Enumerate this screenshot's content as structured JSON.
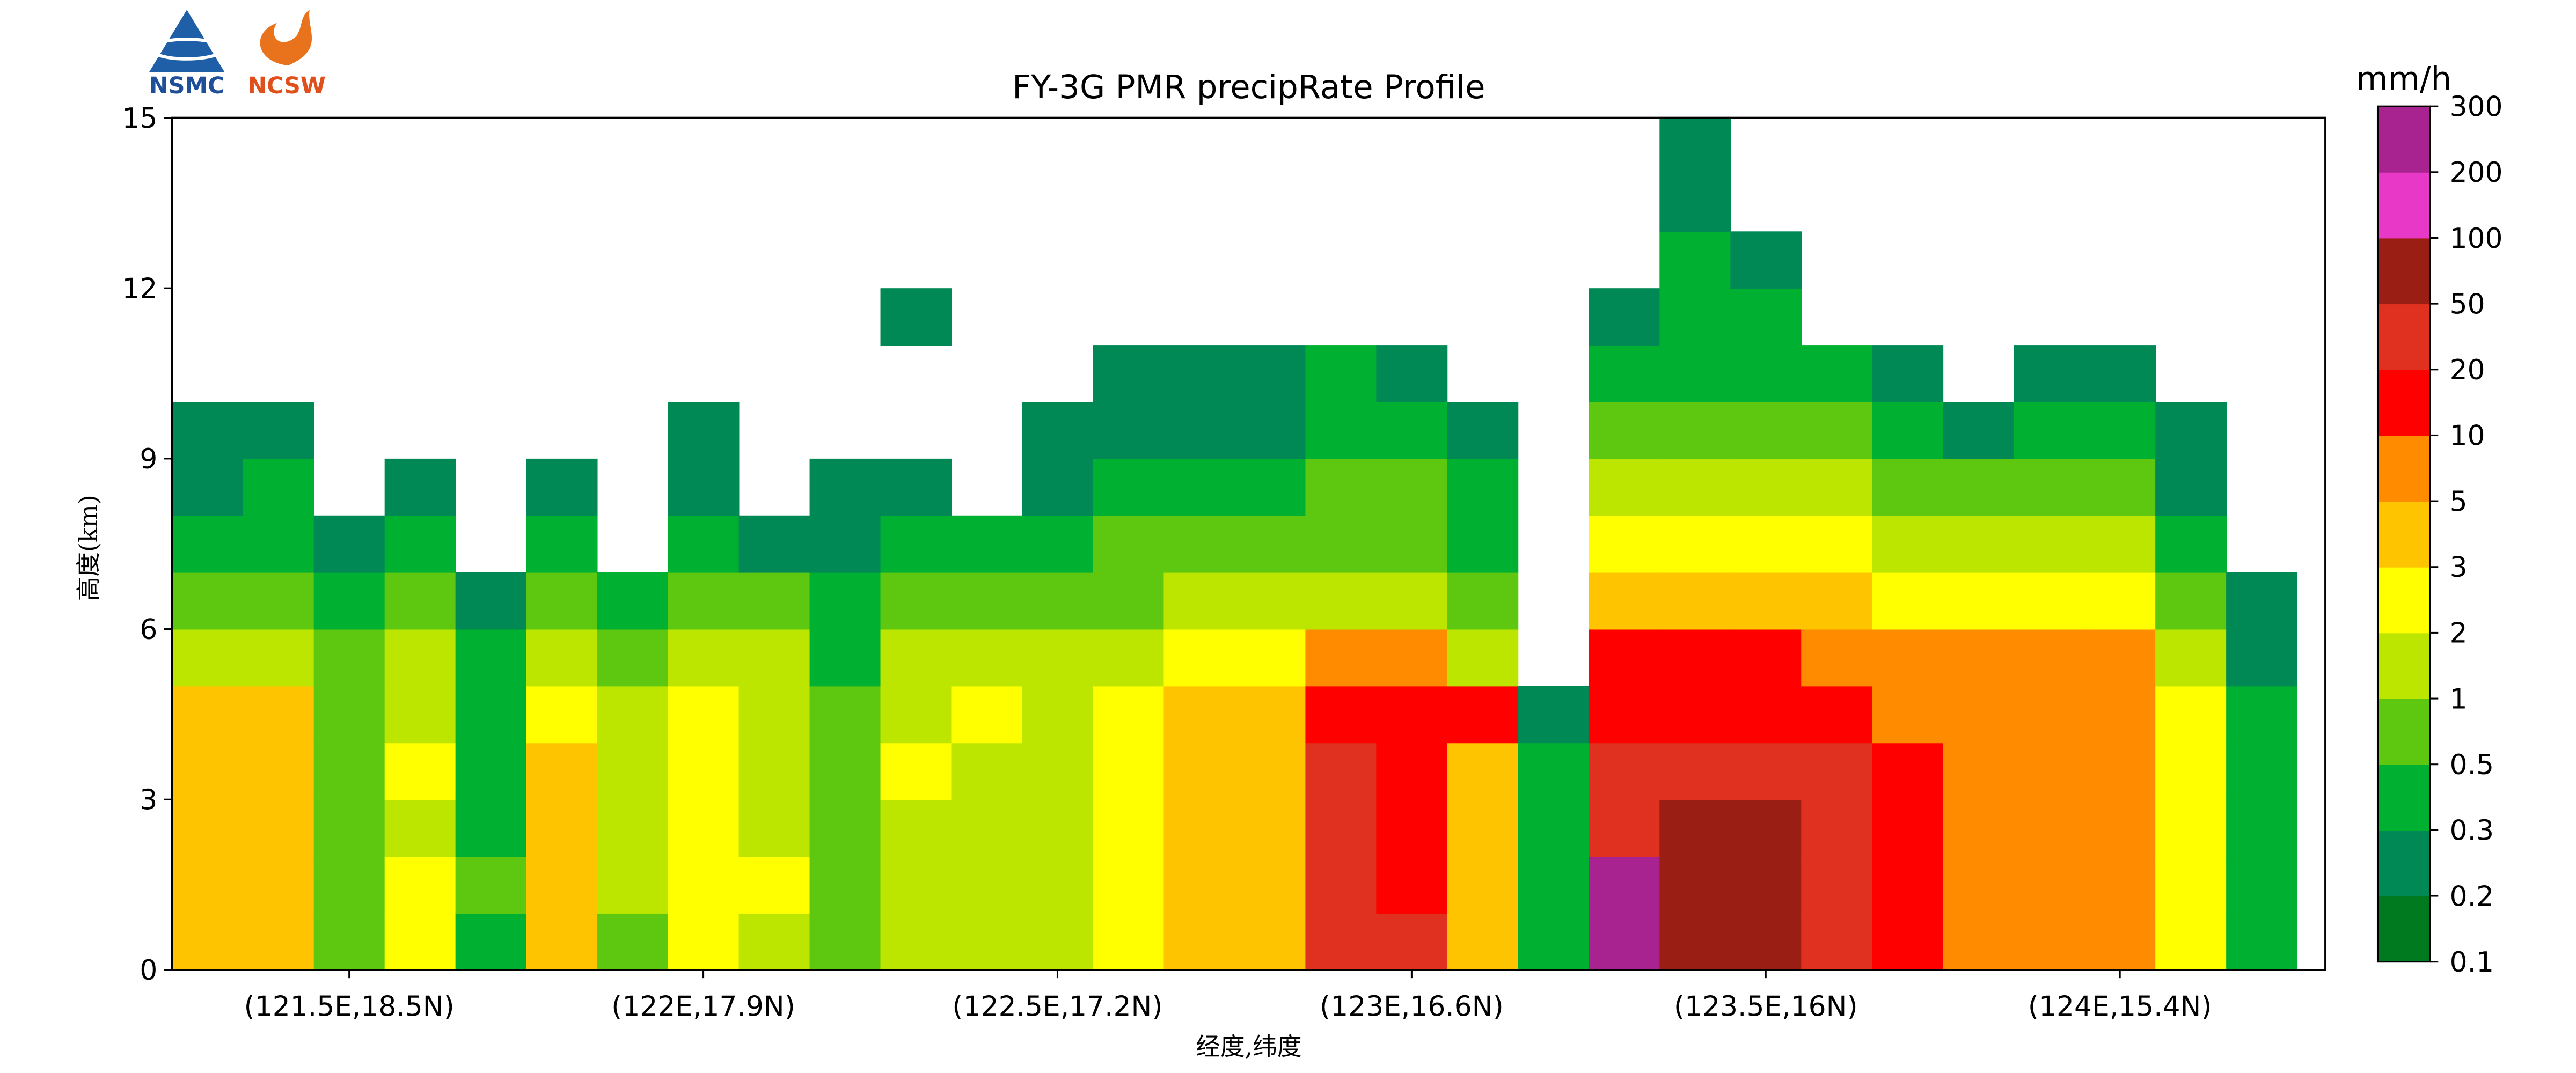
{
  "chart_data": {
    "type": "heatmap",
    "title": "FY-3G PMR precipRate Profile",
    "logos": [
      "NSMC",
      "NCSW"
    ],
    "x_label": "经度,纬度",
    "y_label": "高度(km)",
    "xlim": [
      121.25,
      124.29
    ],
    "xticks": [
      {
        "value": 121.5,
        "label": "(121.5E,18.5N)"
      },
      {
        "value": 122,
        "label": "(122E,17.9N)"
      },
      {
        "value": 122.5,
        "label": "(122.5E,17.2N)"
      },
      {
        "value": 123,
        "label": "(123E,16.6N)"
      },
      {
        "value": 123.5,
        "label": "(123.5E,16N)"
      },
      {
        "value": 124,
        "label": "(124E,15.4N)"
      }
    ],
    "ylim": [
      0,
      15
    ],
    "yticks": [
      0,
      3,
      6,
      9,
      12,
      15
    ],
    "xbins": [
      121.25,
      121.35,
      121.45,
      121.55,
      121.65,
      121.75,
      121.85,
      121.95,
      122.05,
      122.15,
      122.25,
      122.35,
      122.45,
      122.55,
      122.65,
      122.75,
      122.85,
      122.95,
      123.05,
      123.15,
      123.25,
      123.35,
      123.45,
      123.55,
      123.65,
      123.75,
      123.85,
      123.95,
      124.05,
      124.15,
      124.25
    ],
    "ybins": [
      0,
      1,
      2,
      3,
      4,
      5,
      6,
      7,
      8,
      9,
      10,
      11,
      12,
      13,
      14,
      15
    ],
    "values": [
      [
        4,
        4,
        4,
        4,
        4,
        1.5,
        0.7,
        0.4,
        0.25,
        0.25,
        null,
        null,
        null,
        null,
        null
      ],
      [
        4,
        4,
        4,
        4,
        4,
        1.5,
        0.7,
        0.4,
        0.4,
        0.25,
        null,
        null,
        null,
        null,
        null
      ],
      [
        0.7,
        0.7,
        0.7,
        0.7,
        0.7,
        0.7,
        0.4,
        0.25,
        null,
        null,
        null,
        null,
        null,
        null,
        null
      ],
      [
        2.5,
        2.5,
        1.5,
        2.5,
        1.5,
        1.5,
        0.7,
        0.4,
        0.25,
        null,
        null,
        null,
        null,
        null,
        null
      ],
      [
        0.4,
        0.7,
        0.4,
        0.4,
        0.4,
        0.4,
        0.25,
        null,
        null,
        null,
        null,
        null,
        null,
        null,
        null
      ],
      [
        4,
        4,
        4,
        4,
        2.5,
        1.5,
        0.7,
        0.4,
        0.25,
        null,
        null,
        null,
        null,
        null,
        null
      ],
      [
        0.7,
        1.5,
        1.5,
        1.5,
        1.5,
        0.7,
        0.4,
        null,
        null,
        null,
        null,
        null,
        null,
        null,
        null
      ],
      [
        2.5,
        2.5,
        2.5,
        2.5,
        2.5,
        1.5,
        0.7,
        0.4,
        0.25,
        0.25,
        null,
        null,
        null,
        null,
        null
      ],
      [
        1.5,
        2.5,
        1.5,
        1.5,
        1.5,
        1.5,
        0.7,
        0.25,
        null,
        null,
        null,
        null,
        null,
        null,
        null
      ],
      [
        0.7,
        0.7,
        0.7,
        0.7,
        0.7,
        0.4,
        0.4,
        0.25,
        0.25,
        null,
        null,
        null,
        null,
        null,
        null
      ],
      [
        1.5,
        1.5,
        1.5,
        2.5,
        1.5,
        1.5,
        0.7,
        0.4,
        0.25,
        null,
        null,
        0.25,
        null,
        null,
        null
      ],
      [
        1.5,
        1.5,
        1.5,
        1.5,
        2.5,
        1.5,
        0.7,
        0.4,
        null,
        null,
        null,
        null,
        null,
        null,
        null
      ],
      [
        1.5,
        1.5,
        1.5,
        1.5,
        1.5,
        1.5,
        0.7,
        0.4,
        0.25,
        0.25,
        null,
        null,
        null,
        null,
        null
      ],
      [
        2.5,
        2.5,
        2.5,
        2.5,
        2.5,
        1.5,
        0.7,
        0.7,
        0.4,
        0.25,
        0.25,
        null,
        null,
        null,
        null
      ],
      [
        4,
        4,
        4,
        4,
        4,
        2.5,
        1.5,
        0.7,
        0.4,
        0.25,
        0.25,
        null,
        null,
        null,
        null
      ],
      [
        4,
        4,
        4,
        4,
        4,
        2.5,
        1.5,
        0.7,
        0.4,
        0.25,
        0.25,
        null,
        null,
        null,
        null
      ],
      [
        30,
        30,
        30,
        30,
        15,
        7,
        1.5,
        0.7,
        0.7,
        0.4,
        0.4,
        null,
        null,
        null,
        null
      ],
      [
        30,
        15,
        15,
        15,
        15,
        7,
        1.5,
        0.7,
        0.7,
        0.4,
        0.25,
        null,
        null,
        null,
        null
      ],
      [
        4,
        4,
        4,
        4,
        15,
        1.5,
        0.7,
        0.4,
        0.4,
        0.25,
        null,
        null,
        null,
        null,
        null
      ],
      [
        0.4,
        0.4,
        0.4,
        0.4,
        0.25,
        null,
        null,
        null,
        null,
        null,
        null,
        null,
        null,
        null,
        null
      ],
      [
        250,
        250,
        30,
        30,
        15,
        15,
        4,
        2.5,
        1.5,
        0.7,
        0.4,
        0.25,
        null,
        null,
        null
      ],
      [
        70,
        70,
        70,
        30,
        15,
        15,
        4,
        2.5,
        1.5,
        0.7,
        0.4,
        0.4,
        0.4,
        0.25,
        0.25
      ],
      [
        70,
        70,
        70,
        30,
        15,
        15,
        4,
        2.5,
        1.5,
        0.7,
        0.4,
        0.4,
        0.25,
        null,
        null
      ],
      [
        30,
        30,
        30,
        30,
        15,
        7,
        4,
        2.5,
        1.5,
        0.7,
        0.4,
        null,
        null,
        null,
        null
      ],
      [
        15,
        15,
        15,
        15,
        7,
        7,
        2.5,
        1.5,
        0.7,
        0.4,
        0.25,
        null,
        null,
        null,
        null
      ],
      [
        7,
        7,
        7,
        7,
        7,
        7,
        2.5,
        1.5,
        0.7,
        0.25,
        null,
        null,
        null,
        null,
        null
      ],
      [
        7,
        7,
        7,
        7,
        7,
        7,
        2.5,
        1.5,
        0.7,
        0.4,
        0.25,
        null,
        null,
        null,
        null
      ],
      [
        7,
        7,
        7,
        7,
        7,
        7,
        2.5,
        1.5,
        0.7,
        0.4,
        0.25,
        null,
        null,
        null,
        null
      ],
      [
        2.5,
        2.5,
        2.5,
        2.5,
        2.5,
        1.5,
        0.7,
        0.4,
        0.25,
        0.25,
        null,
        null,
        null,
        null,
        null
      ],
      [
        0.4,
        0.4,
        0.4,
        0.4,
        0.4,
        0.25,
        0.25,
        null,
        null,
        null,
        null,
        null,
        null,
        null,
        null
      ]
    ],
    "colorbar": {
      "label": "mm/h",
      "boundaries": [
        0.1,
        0.2,
        0.3,
        0.5,
        1,
        2,
        3,
        5,
        10,
        20,
        50,
        100,
        200,
        300
      ],
      "colors": [
        "#007a1e",
        "#008855",
        "#00b030",
        "#5ec810",
        "#bce600",
        "#ffff00",
        "#ffc400",
        "#ff8c00",
        "#ff0000",
        "#e03020",
        "#9b1e14",
        "#e838c8",
        "#a8238f"
      ]
    }
  }
}
